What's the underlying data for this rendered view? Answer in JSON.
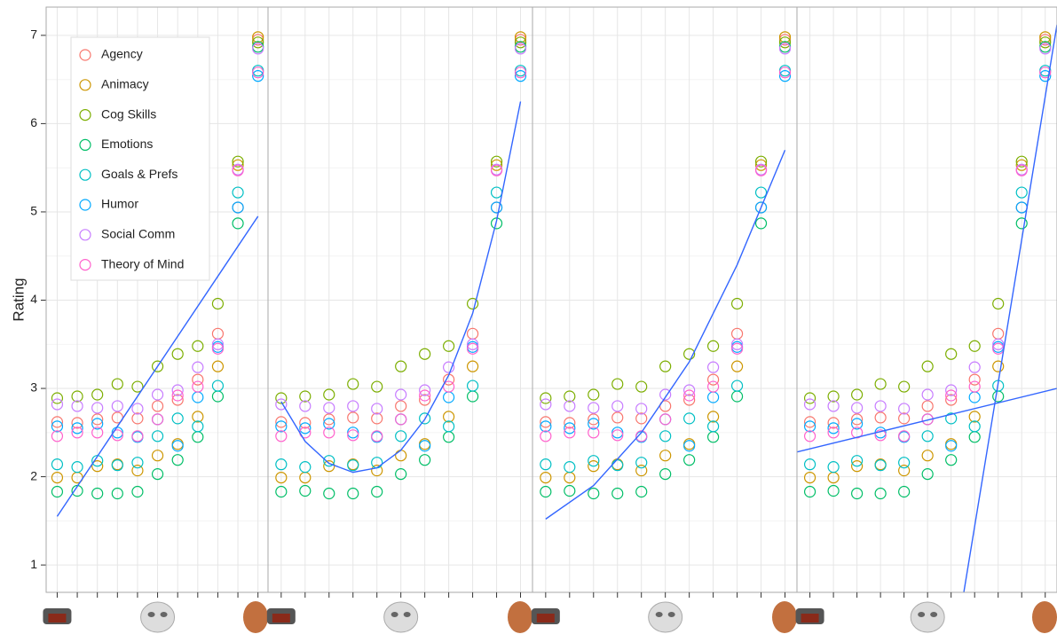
{
  "chart_data": {
    "type": "scatter",
    "y_label": "Rating",
    "x": [
      1,
      2,
      3,
      4,
      5,
      6,
      7,
      8,
      9,
      10,
      11
    ],
    "xlim": [
      0.45,
      11.5
    ],
    "xticks": [
      1,
      2,
      3,
      4,
      5,
      6,
      7,
      8,
      9,
      10,
      11
    ],
    "ylim": [
      0.69,
      7.32
    ],
    "yticks": [
      1,
      2,
      3,
      4,
      5,
      6,
      7
    ],
    "grid": true,
    "legend": "top-left",
    "series": [
      {
        "name": "Agency",
        "color": "#F8766D",
        "values": [
          2.62,
          2.61,
          2.65,
          2.67,
          2.66,
          2.8,
          2.87,
          3.1,
          3.62,
          5.05,
          6.95
        ]
      },
      {
        "name": "Animacy",
        "color": "#CD9600",
        "values": [
          1.99,
          1.99,
          2.12,
          2.14,
          2.07,
          2.24,
          2.37,
          2.68,
          3.25,
          5.53,
          6.98
        ]
      },
      {
        "name": "Cog Skills",
        "color": "#7CAE00",
        "values": [
          2.89,
          2.91,
          2.93,
          3.05,
          3.02,
          3.25,
          3.39,
          3.48,
          3.96,
          5.57,
          6.92
        ]
      },
      {
        "name": "Emotions",
        "color": "#00BE67",
        "values": [
          1.83,
          1.84,
          1.81,
          1.81,
          1.83,
          2.03,
          2.19,
          2.45,
          2.91,
          4.87,
          6.87
        ]
      },
      {
        "name": "Goals & Prefs",
        "color": "#00BFC4",
        "values": [
          2.14,
          2.11,
          2.18,
          2.13,
          2.16,
          2.46,
          2.66,
          2.57,
          3.03,
          5.22,
          6.6
        ]
      },
      {
        "name": "Humor",
        "color": "#00A9FF",
        "values": [
          2.57,
          2.55,
          2.6,
          2.5,
          2.45,
          2.65,
          2.35,
          2.9,
          3.47,
          5.05,
          6.54
        ]
      },
      {
        "name": "Social Comm",
        "color": "#C77CFF",
        "values": [
          2.82,
          2.8,
          2.78,
          2.8,
          2.77,
          2.93,
          2.98,
          3.24,
          3.5,
          5.48,
          6.85
        ]
      },
      {
        "name": "Theory of Mind",
        "color": "#FF61CC",
        "values": [
          2.46,
          2.5,
          2.5,
          2.47,
          2.46,
          2.65,
          2.92,
          3.02,
          3.45,
          5.47,
          6.58
        ]
      }
    ],
    "fit_color": "#3366FF",
    "panels": [
      {
        "fits": [
          {
            "x": [
              1,
              11
            ],
            "y": [
              1.55,
              4.95
            ]
          }
        ]
      },
      {
        "fits": [
          {
            "x": [
              1,
              2,
              3,
              4,
              5,
              6,
              7,
              8,
              9,
              10,
              11
            ],
            "y": [
              2.85,
              2.4,
              2.15,
              2.05,
              2.1,
              2.3,
              2.65,
              3.15,
              3.85,
              4.9,
              6.25
            ]
          }
        ]
      },
      {
        "fits": [
          {
            "x": [
              1,
              3,
              5,
              7,
              9,
              11
            ],
            "y": [
              1.52,
              1.9,
              2.5,
              3.3,
              4.4,
              5.7
            ]
          }
        ]
      },
      {
        "fits": [
          {
            "x": [
              0.45,
              11.5
            ],
            "y": [
              2.28,
              3.0
            ]
          },
          {
            "x": [
              7.54,
              11.5
            ],
            "y": [
              0.69,
              7.12
            ]
          }
        ]
      }
    ]
  }
}
